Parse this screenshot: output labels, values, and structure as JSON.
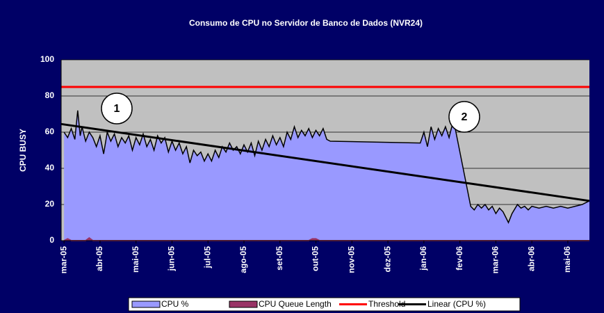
{
  "chart_data": {
    "type": "line",
    "title": "Consumo de CPU no Servidor de Banco de Dados (NVR24)",
    "ylabel": "CPU BUSY",
    "xlim": [
      -0.08,
      14.6
    ],
    "ylim": [
      0,
      100
    ],
    "yticks": [
      0,
      20,
      40,
      60,
      80,
      100
    ],
    "xticks": [
      {
        "value": 0,
        "label": "mar-05"
      },
      {
        "value": 1,
        "label": "abr-05"
      },
      {
        "value": 2,
        "label": "mai-05"
      },
      {
        "value": 3,
        "label": "jun-05"
      },
      {
        "value": 4,
        "label": "jul-05"
      },
      {
        "value": 5,
        "label": "ago-05"
      },
      {
        "value": 6,
        "label": "set-05"
      },
      {
        "value": 7,
        "label": "out-05"
      },
      {
        "value": 8,
        "label": "nov-05"
      },
      {
        "value": 9,
        "label": "dez-05"
      },
      {
        "value": 10,
        "label": "jan-06"
      },
      {
        "value": 11,
        "label": "fev-06"
      },
      {
        "value": 12,
        "label": "mar-06"
      },
      {
        "value": 13,
        "label": "abr-06"
      },
      {
        "value": 14,
        "label": "mai-06"
      }
    ],
    "grid": true,
    "annotations": [
      "1",
      "2"
    ],
    "series": [
      {
        "name": "CPU %",
        "color": "#9999ff",
        "kind": "area",
        "x": [
          0,
          0.1,
          0.2,
          0.3,
          0.38,
          0.45,
          0.5,
          0.6,
          0.7,
          0.8,
          0.9,
          1.0,
          1.1,
          1.2,
          1.3,
          1.4,
          1.5,
          1.6,
          1.7,
          1.8,
          1.9,
          2.0,
          2.1,
          2.2,
          2.3,
          2.4,
          2.5,
          2.6,
          2.7,
          2.8,
          2.9,
          3.0,
          3.1,
          3.2,
          3.3,
          3.4,
          3.5,
          3.6,
          3.7,
          3.8,
          3.9,
          4.0,
          4.1,
          4.2,
          4.3,
          4.4,
          4.5,
          4.6,
          4.7,
          4.8,
          4.9,
          5.0,
          5.1,
          5.2,
          5.3,
          5.4,
          5.5,
          5.6,
          5.7,
          5.8,
          5.9,
          6.0,
          6.1,
          6.2,
          6.3,
          6.4,
          6.5,
          6.6,
          6.7,
          6.8,
          6.9,
          7.0,
          7.1,
          7.2,
          7.3,
          7.4,
          9.9,
          10.0,
          10.1,
          10.2,
          10.3,
          10.4,
          10.5,
          10.6,
          10.7,
          10.8,
          10.85,
          11.3,
          11.4,
          11.5,
          11.6,
          11.7,
          11.8,
          11.9,
          12.0,
          12.1,
          12.2,
          12.35,
          12.45,
          12.6,
          12.7,
          12.8,
          12.9,
          13.0,
          13.2,
          13.4,
          13.6,
          13.8,
          14.0,
          14.2,
          14.4,
          14.6
        ],
        "values": [
          60,
          57,
          62,
          56,
          72,
          58,
          63,
          55,
          60,
          57,
          52,
          58,
          48,
          60,
          55,
          59,
          52,
          57,
          54,
          58,
          50,
          57,
          53,
          59,
          52,
          56,
          50,
          58,
          54,
          57,
          49,
          55,
          50,
          54,
          48,
          52,
          43,
          50,
          47,
          49,
          44,
          48,
          44,
          50,
          46,
          52,
          49,
          54,
          50,
          52,
          48,
          53,
          49,
          54,
          47,
          55,
          50,
          56,
          52,
          58,
          53,
          57,
          52,
          60,
          56,
          63,
          57,
          61,
          58,
          62,
          57,
          61,
          58,
          62,
          56,
          55,
          54,
          60,
          52,
          63,
          56,
          62,
          58,
          63,
          57,
          65,
          64,
          19,
          17,
          20,
          18,
          20,
          17,
          19,
          15,
          18,
          16,
          10,
          15,
          20,
          18,
          19,
          17,
          19,
          18,
          19,
          18,
          19,
          18,
          19,
          20,
          22
        ]
      },
      {
        "name": "CPU Queue Length",
        "color": "#993366",
        "kind": "area",
        "x": [
          0,
          0.1,
          0.2,
          0.6,
          0.7,
          0.8,
          6.8,
          6.9,
          7.0,
          7.1,
          14.6
        ],
        "values": [
          0,
          1,
          0,
          0,
          1.5,
          0,
          0,
          1,
          1,
          0,
          0
        ]
      },
      {
        "name": "Threshold",
        "color": "#ff0000",
        "kind": "line",
        "x": [
          -0.08,
          14.6
        ],
        "values": [
          85,
          85
        ]
      },
      {
        "name": "Linear (CPU %)",
        "color": "#000000",
        "kind": "line",
        "x": [
          -0.08,
          14.6
        ],
        "values": [
          64.5,
          22
        ]
      }
    ]
  }
}
